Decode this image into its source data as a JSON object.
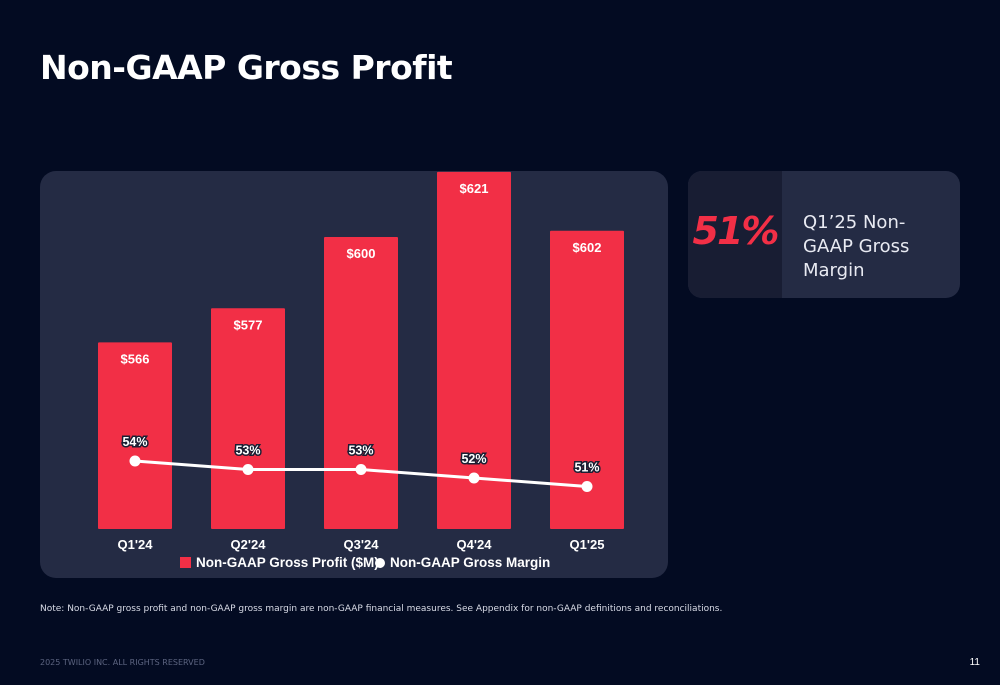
{
  "slide": {
    "title": "Non-GAAP Gross Profit",
    "note": "Note: Non-GAAP gross profit and non-GAAP gross margin are non-GAAP financial measures. See Appendix for non-GAAP definitions and reconciliations.",
    "copyright": "2025 TWILIO INC. ALL RIGHTS RESERVED",
    "page_number": "11"
  },
  "kpi": {
    "value": "51%",
    "label": "Q1’25 Non-GAAP Gross Margin"
  },
  "colors": {
    "bar": "#f22f46",
    "line": "#ffffff",
    "panel": "#242b44",
    "background": "#030b22"
  },
  "chart_data": {
    "type": "bar",
    "categories": [
      "Q1'24",
      "Q2'24",
      "Q3'24",
      "Q4'24",
      "Q1'25"
    ],
    "series": [
      {
        "name": "Non-GAAP Gross Profit ($M)",
        "type": "bar",
        "values": [
          566,
          577,
          600,
          621,
          602
        ],
        "labels": [
          "$566",
          "$577",
          "$600",
          "$621",
          "$602"
        ]
      },
      {
        "name": "Non-GAAP Gross Margin",
        "type": "line",
        "values": [
          54,
          53,
          53,
          52,
          51
        ],
        "labels": [
          "54%",
          "53%",
          "53%",
          "52%",
          "51%"
        ]
      }
    ],
    "title": "",
    "xlabel": "",
    "ylabel": "",
    "legend_position": "bottom",
    "grid": false
  }
}
